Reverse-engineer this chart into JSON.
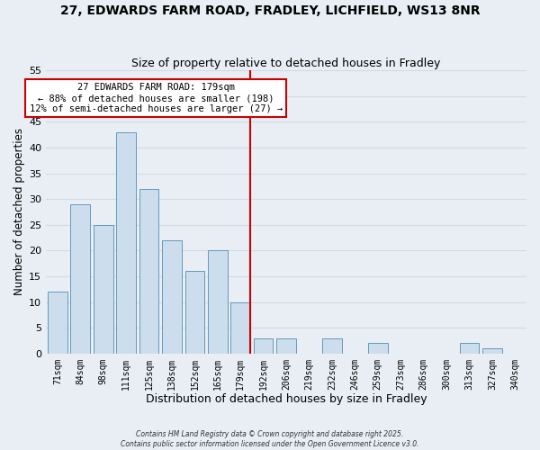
{
  "title": "27, EDWARDS FARM ROAD, FRADLEY, LICHFIELD, WS13 8NR",
  "subtitle": "Size of property relative to detached houses in Fradley",
  "xlabel": "Distribution of detached houses by size in Fradley",
  "ylabel": "Number of detached properties",
  "bar_labels": [
    "71sqm",
    "84sqm",
    "98sqm",
    "111sqm",
    "125sqm",
    "138sqm",
    "152sqm",
    "165sqm",
    "179sqm",
    "192sqm",
    "206sqm",
    "219sqm",
    "232sqm",
    "246sqm",
    "259sqm",
    "273sqm",
    "286sqm",
    "300sqm",
    "313sqm",
    "327sqm",
    "340sqm"
  ],
  "bar_values": [
    12,
    29,
    25,
    43,
    32,
    22,
    16,
    20,
    10,
    3,
    3,
    0,
    3,
    0,
    2,
    0,
    0,
    0,
    2,
    1,
    0
  ],
  "bar_color": "#ccdded",
  "bar_edge_color": "#6699bb",
  "vline_x_index": 8,
  "vline_color": "#cc0000",
  "annotation_title": "27 EDWARDS FARM ROAD: 179sqm",
  "annotation_line2": "← 88% of detached houses are smaller (198)",
  "annotation_line3": "12% of semi-detached houses are larger (27) →",
  "annotation_box_color": "#ffffff",
  "annotation_box_edge_color": "#cc0000",
  "ylim": [
    0,
    55
  ],
  "yticks": [
    0,
    5,
    10,
    15,
    20,
    25,
    30,
    35,
    40,
    45,
    50,
    55
  ],
  "footer1": "Contains HM Land Registry data © Crown copyright and database right 2025.",
  "footer2": "Contains public sector information licensed under the Open Government Licence v3.0.",
  "background_color": "#e8eef4",
  "grid_color": "#d0dbe6",
  "title_fontsize": 10,
  "subtitle_fontsize": 9,
  "ann_fontsize": 7.5
}
